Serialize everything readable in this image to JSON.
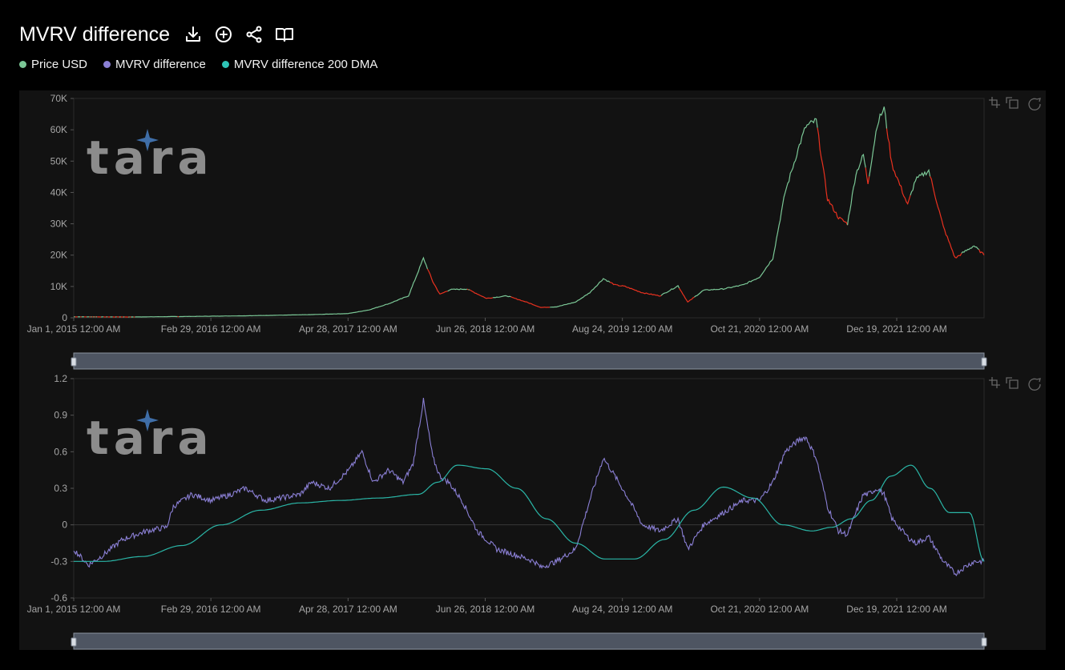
{
  "header": {
    "title": "MVRV difference",
    "icons": [
      "download-icon",
      "add-circle-icon",
      "share-icon",
      "book-icon"
    ]
  },
  "legend": [
    {
      "label": "Price USD",
      "color": "#7bc796"
    },
    {
      "label": "MVRV difference",
      "color": "#8a7fd4"
    },
    {
      "label": "MVRV difference 200 DMA",
      "color": "#2ec4b6"
    }
  ],
  "watermark": "tara",
  "colors": {
    "price_up": "#7bc796",
    "price_down": "#e8311f",
    "mvrv": "#8a7fd4",
    "dma": "#2ab5a6",
    "panel": "#121212",
    "slider": "#4e5562"
  },
  "chart_data": [
    {
      "type": "line",
      "x_tick_labels": [
        "Jan 1, 2015 12:00 AM",
        "Feb 29, 2016 12:00 AM",
        "Apr 28, 2017 12:00 AM",
        "Jun 26, 2018 12:00 AM",
        "Aug 24, 2019 12:00 AM",
        "Oct 21, 2020 12:00 AM",
        "Dec 19, 2021 12:00 AM"
      ],
      "y_tick_labels": [
        "0",
        "10K",
        "20K",
        "30K",
        "40K",
        "50K",
        "60K",
        "70K"
      ],
      "ylim": [
        0,
        70000
      ],
      "xlim": [
        "2015-01-01",
        "2022-09-15"
      ],
      "series": [
        {
          "name": "Price USD",
          "x": [
            "2015-01-01",
            "2015-07-01",
            "2016-01-01",
            "2016-07-01",
            "2017-01-01",
            "2017-04-28",
            "2017-07-01",
            "2017-09-01",
            "2017-11-01",
            "2017-12-17",
            "2018-01-15",
            "2018-02-06",
            "2018-03-10",
            "2018-05-01",
            "2018-06-30",
            "2018-09-01",
            "2018-11-01",
            "2018-12-15",
            "2019-02-01",
            "2019-04-01",
            "2019-05-15",
            "2019-06-26",
            "2019-08-01",
            "2019-09-01",
            "2019-10-25",
            "2019-12-18",
            "2020-02-12",
            "2020-03-13",
            "2020-05-01",
            "2020-07-01",
            "2020-09-01",
            "2020-10-21",
            "2020-12-01",
            "2021-01-08",
            "2021-02-21",
            "2021-03-13",
            "2021-04-14",
            "2021-05-19",
            "2021-06-22",
            "2021-07-20",
            "2021-08-15",
            "2021-09-07",
            "2021-09-21",
            "2021-10-20",
            "2021-11-10",
            "2021-12-04",
            "2022-01-22",
            "2022-02-15",
            "2022-03-28",
            "2022-05-12",
            "2022-06-18",
            "2022-07-15",
            "2022-08-15",
            "2022-09-15"
          ],
          "values": [
            315,
            260,
            430,
            670,
            1000,
            1350,
            2500,
            4500,
            7000,
            19000,
            11500,
            7500,
            9000,
            9200,
            6200,
            7000,
            5000,
            3300,
            3500,
            5000,
            8000,
            12500,
            10500,
            10000,
            8000,
            7000,
            10200,
            5000,
            8800,
            9200,
            10500,
            13000,
            19000,
            40000,
            55000,
            61000,
            63000,
            38000,
            32000,
            30000,
            46000,
            52000,
            43000,
            62000,
            67000,
            49000,
            36000,
            44000,
            47000,
            29000,
            19000,
            21000,
            23000,
            20000
          ]
        }
      ]
    },
    {
      "type": "line",
      "x_tick_labels": [
        "Jan 1, 2015 12:00 AM",
        "Feb 29, 2016 12:00 AM",
        "Apr 28, 2017 12:00 AM",
        "Jun 26, 2018 12:00 AM",
        "Aug 24, 2019 12:00 AM",
        "Oct 21, 2020 12:00 AM",
        "Dec 19, 2021 12:00 AM"
      ],
      "y_tick_labels": [
        "-0.6",
        "-0.3",
        "0",
        "0.3",
        "0.6",
        "0.9",
        "1.2"
      ],
      "ylim": [
        -0.6,
        1.2
      ],
      "xlim": [
        "2015-01-01",
        "2022-09-15"
      ],
      "series": [
        {
          "name": "MVRV difference",
          "x": [
            "2015-01-01",
            "2015-02-15",
            "2015-04-01",
            "2015-06-01",
            "2015-08-15",
            "2015-10-15",
            "2015-11-05",
            "2016-01-01",
            "2016-03-01",
            "2016-05-01",
            "2016-06-15",
            "2016-08-15",
            "2016-10-01",
            "2016-12-01",
            "2017-01-05",
            "2017-03-01",
            "2017-05-01",
            "2017-06-10",
            "2017-07-15",
            "2017-09-01",
            "2017-10-15",
            "2017-11-15",
            "2017-12-17",
            "2018-01-15",
            "2018-02-06",
            "2018-03-05",
            "2018-04-15",
            "2018-06-01",
            "2018-08-01",
            "2018-10-01",
            "2018-11-25",
            "2018-12-15",
            "2019-02-01",
            "2019-04-01",
            "2019-05-15",
            "2019-06-26",
            "2019-08-01",
            "2019-09-15",
            "2019-10-25",
            "2019-12-18",
            "2020-02-12",
            "2020-03-13",
            "2020-05-01",
            "2020-07-01",
            "2020-09-01",
            "2020-10-21",
            "2020-12-01",
            "2021-01-08",
            "2021-02-21",
            "2021-03-13",
            "2021-04-14",
            "2021-05-19",
            "2021-06-22",
            "2021-07-20",
            "2021-08-15",
            "2021-09-07",
            "2021-09-21",
            "2021-10-20",
            "2021-11-10",
            "2021-12-04",
            "2022-01-22",
            "2022-02-15",
            "2022-03-28",
            "2022-05-12",
            "2022-06-18",
            "2022-07-15",
            "2022-08-15",
            "2022-09-15"
          ],
          "values": [
            -0.2,
            -0.33,
            -0.25,
            -0.12,
            -0.05,
            -0.02,
            0.15,
            0.25,
            0.2,
            0.25,
            0.3,
            0.2,
            0.22,
            0.25,
            0.35,
            0.3,
            0.45,
            0.6,
            0.35,
            0.45,
            0.35,
            0.5,
            1.02,
            0.55,
            0.4,
            0.35,
            0.2,
            -0.05,
            -0.2,
            -0.25,
            -0.3,
            -0.35,
            -0.3,
            -0.2,
            0.2,
            0.55,
            0.4,
            0.2,
            0.0,
            -0.05,
            0.05,
            -0.2,
            0.0,
            0.1,
            0.2,
            0.2,
            0.35,
            0.6,
            0.7,
            0.72,
            0.55,
            0.15,
            -0.05,
            -0.08,
            0.1,
            0.25,
            0.25,
            0.3,
            0.25,
            0.05,
            -0.1,
            -0.15,
            -0.1,
            -0.3,
            -0.4,
            -0.35,
            -0.3,
            -0.3
          ]
        },
        {
          "name": "MVRV difference 200 DMA",
          "x": [
            "2015-01-01",
            "2015-04-01",
            "2015-08-01",
            "2015-12-01",
            "2016-04-01",
            "2016-08-01",
            "2016-12-01",
            "2017-04-01",
            "2017-08-01",
            "2017-12-01",
            "2018-01-30",
            "2018-04-01",
            "2018-07-01",
            "2018-10-01",
            "2019-01-01",
            "2019-04-01",
            "2019-07-01",
            "2019-10-01",
            "2020-01-01",
            "2020-04-01",
            "2020-07-01",
            "2020-10-01",
            "2021-01-01",
            "2021-04-01",
            "2021-06-01",
            "2021-08-01",
            "2021-10-01",
            "2021-12-01",
            "2022-02-01",
            "2022-04-01",
            "2022-06-01",
            "2022-08-01",
            "2022-09-15"
          ],
          "values": [
            -0.3,
            -0.3,
            -0.26,
            -0.17,
            0.0,
            0.12,
            0.18,
            0.2,
            0.22,
            0.25,
            0.35,
            0.49,
            0.46,
            0.3,
            0.05,
            -0.15,
            -0.28,
            -0.28,
            -0.12,
            0.12,
            0.31,
            0.22,
            0.0,
            -0.05,
            -0.02,
            0.05,
            0.2,
            0.4,
            0.49,
            0.3,
            0.1,
            0.1,
            -0.3
          ]
        }
      ]
    }
  ]
}
